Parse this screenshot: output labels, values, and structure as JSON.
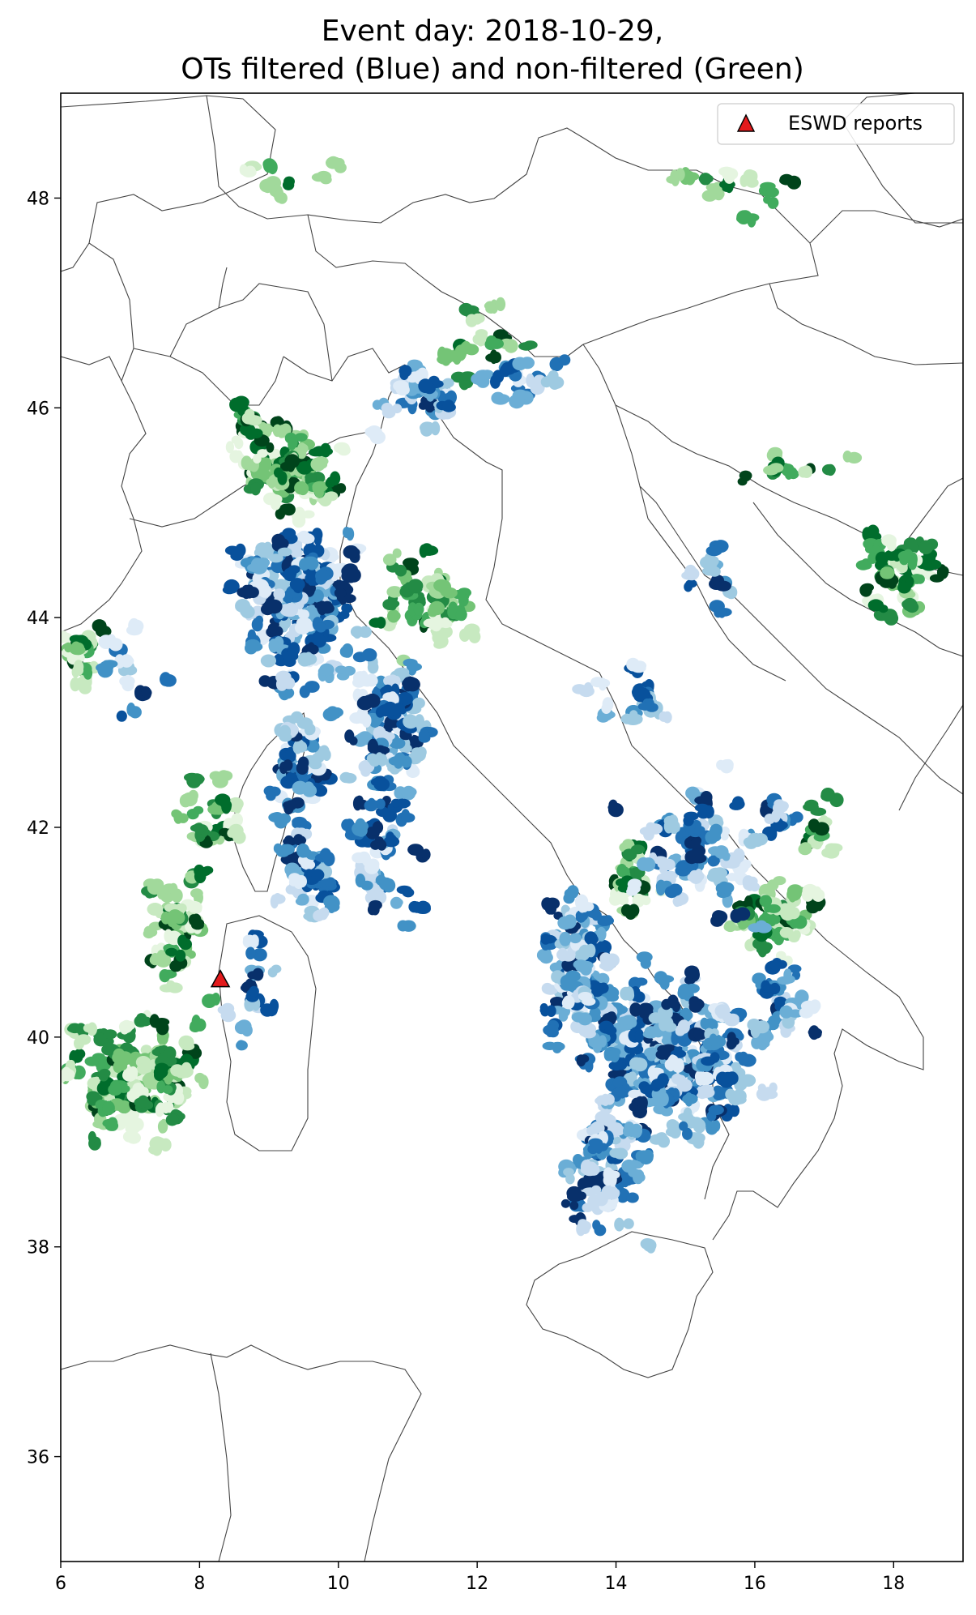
{
  "chart_data": {
    "type": "scatter",
    "title_lines": [
      "Event day: 2018-10-29,",
      "OTs filtered (Blue) and non-filtered (Green)"
    ],
    "xlabel": "",
    "ylabel": "",
    "xlim": [
      6,
      19
    ],
    "ylim": [
      35,
      49
    ],
    "x_ticks": [
      6,
      8,
      10,
      12,
      14,
      16,
      18
    ],
    "y_ticks": [
      36,
      38,
      40,
      42,
      44,
      46,
      48
    ],
    "grid": false,
    "legend": {
      "position": "top-right",
      "entries": [
        {
          "label": "ESWD reports",
          "marker": "triangle",
          "color": "#e31a1c"
        }
      ]
    },
    "colors": {
      "filtered": [
        "#08306b",
        "#08519c",
        "#2171b5",
        "#4292c6",
        "#6baed6",
        "#9ecae1",
        "#c6dbef",
        "#deebf7"
      ],
      "non_filtered": [
        "#00441b",
        "#006d2c",
        "#238b45",
        "#41ab5d",
        "#74c476",
        "#a1d99b",
        "#c7e9c0",
        "#e5f5e0"
      ]
    },
    "series": [
      {
        "name": "ESWD reports",
        "marker": "triangle",
        "points": [
          [
            8.3,
            40.55
          ]
        ]
      }
    ],
    "ot_clusters": {
      "filtered": [
        {
          "center": [
            9.4,
            44.2
          ],
          "spread": [
            0.7,
            0.55
          ],
          "n": 170
        },
        {
          "center": [
            10.7,
            43.0
          ],
          "spread": [
            0.45,
            0.55
          ],
          "n": 80
        },
        {
          "center": [
            9.4,
            42.6
          ],
          "spread": [
            0.35,
            0.8
          ],
          "n": 60
        },
        {
          "center": [
            10.5,
            41.8
          ],
          "spread": [
            0.5,
            0.6
          ],
          "n": 40
        },
        {
          "center": [
            9.6,
            41.5
          ],
          "spread": [
            0.4,
            0.4
          ],
          "n": 25
        },
        {
          "center": [
            8.8,
            40.4
          ],
          "spread": [
            0.3,
            0.4
          ],
          "n": 15
        },
        {
          "center": [
            7.0,
            43.5
          ],
          "spread": [
            0.35,
            0.3
          ],
          "n": 12
        },
        {
          "center": [
            11.2,
            46.1
          ],
          "spread": [
            0.7,
            0.25
          ],
          "n": 30
        },
        {
          "center": [
            12.6,
            46.3
          ],
          "spread": [
            0.6,
            0.2
          ],
          "n": 14
        },
        {
          "center": [
            14.8,
            39.8
          ],
          "spread": [
            0.9,
            0.6
          ],
          "n": 230
        },
        {
          "center": [
            13.5,
            40.6
          ],
          "spread": [
            0.4,
            0.6
          ],
          "n": 90
        },
        {
          "center": [
            13.8,
            38.8
          ],
          "spread": [
            0.5,
            0.6
          ],
          "n": 70
        },
        {
          "center": [
            15.2,
            41.8
          ],
          "spread": [
            0.9,
            0.5
          ],
          "n": 60
        },
        {
          "center": [
            16.4,
            40.3
          ],
          "spread": [
            0.4,
            0.4
          ],
          "n": 25
        },
        {
          "center": [
            14.3,
            43.3
          ],
          "spread": [
            0.5,
            0.35
          ],
          "n": 15
        },
        {
          "center": [
            15.3,
            44.4
          ],
          "spread": [
            0.5,
            0.35
          ],
          "n": 10
        },
        {
          "center": [
            16.4,
            42.1
          ],
          "spread": [
            0.3,
            0.25
          ],
          "n": 8
        }
      ],
      "non_filtered": [
        {
          "center": [
            7.0,
            39.6
          ],
          "spread": [
            0.8,
            0.55
          ],
          "n": 110
        },
        {
          "center": [
            7.6,
            41.0
          ],
          "spread": [
            0.4,
            0.5
          ],
          "n": 40
        },
        {
          "center": [
            8.2,
            42.1
          ],
          "spread": [
            0.4,
            0.35
          ],
          "n": 25
        },
        {
          "center": [
            6.3,
            43.6
          ],
          "spread": [
            0.25,
            0.35
          ],
          "n": 20
        },
        {
          "center": [
            9.3,
            45.4
          ],
          "spread": [
            0.6,
            0.35
          ],
          "n": 70
        },
        {
          "center": [
            8.7,
            45.9
          ],
          "spread": [
            0.2,
            0.2
          ],
          "n": 10
        },
        {
          "center": [
            11.3,
            44.2
          ],
          "spread": [
            0.6,
            0.5
          ],
          "n": 40
        },
        {
          "center": [
            12.2,
            46.6
          ],
          "spread": [
            0.5,
            0.25
          ],
          "n": 14
        },
        {
          "center": [
            9.3,
            48.2
          ],
          "spread": [
            0.6,
            0.2
          ],
          "n": 8
        },
        {
          "center": [
            15.6,
            48.1
          ],
          "spread": [
            0.9,
            0.2
          ],
          "n": 12
        },
        {
          "center": [
            14.2,
            41.5
          ],
          "spread": [
            0.3,
            0.3
          ],
          "n": 25
        },
        {
          "center": [
            16.3,
            41.1
          ],
          "spread": [
            0.5,
            0.3
          ],
          "n": 40
        },
        {
          "center": [
            16.9,
            42.0
          ],
          "spread": [
            0.2,
            0.2
          ],
          "n": 10
        },
        {
          "center": [
            18.1,
            44.4
          ],
          "spread": [
            0.5,
            0.35
          ],
          "n": 40
        },
        {
          "center": [
            16.6,
            45.4
          ],
          "spread": [
            0.7,
            0.2
          ],
          "n": 10
        }
      ]
    }
  }
}
